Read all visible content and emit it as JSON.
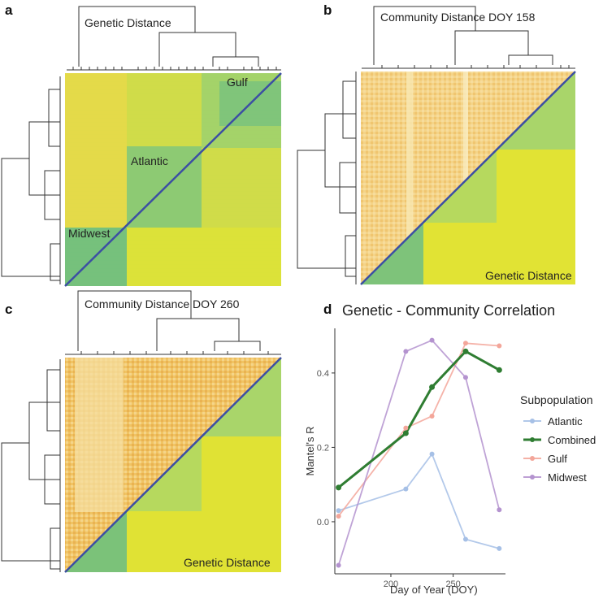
{
  "panels": {
    "a": {
      "letter": "a",
      "top_label": "Genetic Distance",
      "cluster_labels": [
        "Gulf",
        "Atlantic",
        "Midwest"
      ]
    },
    "b": {
      "letter": "b",
      "top_label": "Community Distance DOY 158",
      "bottom_label": "Genetic Distance"
    },
    "c": {
      "letter": "c",
      "top_label": "Community Distance DOY 260",
      "bottom_label": "Genetic Distance"
    },
    "d": {
      "letter": "d"
    }
  },
  "colors": {
    "Atlantic": "#a6c0e6",
    "Combined": "#2f7d32",
    "Gulf": "#f3a69a",
    "Midwest": "#b493cf",
    "heat_yellow": "#e3e52e",
    "heat_green": "#6fbf7a",
    "heat_diag": "#3a4fa0"
  },
  "chart_data": {
    "type": "line",
    "title": "Genetic - Community Correlation",
    "xlabel": "Day of Year (DOY)",
    "ylabel": "Mantel's R",
    "xlim": [
      155,
      292
    ],
    "ylim": [
      -0.14,
      0.52
    ],
    "xticks": [
      200,
      250
    ],
    "yticks": [
      0.0,
      0.2,
      0.4
    ],
    "legend_title": "Subpopulation",
    "legend_position": "right",
    "x": [
      158,
      212,
      233,
      260,
      287
    ],
    "series": [
      {
        "name": "Atlantic",
        "values": [
          0.03,
          0.088,
          0.182,
          -0.047,
          -0.072
        ]
      },
      {
        "name": "Combined",
        "values": [
          0.092,
          0.238,
          0.362,
          0.458,
          0.408
        ]
      },
      {
        "name": "Gulf",
        "values": [
          0.015,
          0.252,
          0.284,
          0.48,
          0.473
        ]
      },
      {
        "name": "Midwest",
        "values": [
          -0.117,
          0.458,
          0.488,
          0.388,
          0.032
        ]
      }
    ]
  }
}
